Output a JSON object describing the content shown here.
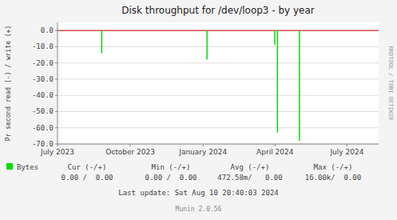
{
  "chart_data": {
    "type": "bar",
    "title": "Disk throughput for /dev/loop3 - by year",
    "ylabel": "Pr second read (-) / write (+)",
    "x": [
      1693000000,
      1704500000,
      1711900000,
      1712200000,
      1714600000
    ],
    "series": [
      {
        "name": "Bytes",
        "color": "#00dd00",
        "values": [
          -14.0,
          -18.0,
          -9.0,
          -63.0,
          -68.0
        ]
      }
    ],
    "xlim": [
      1688169600,
      1723248000
    ],
    "xticks": [
      {
        "value": 1688169600,
        "label": "July 2023"
      },
      {
        "value": 1696118400,
        "label": "October 2023"
      },
      {
        "value": 1704067200,
        "label": "January 2024"
      },
      {
        "value": 1711929600,
        "label": "April 2024"
      },
      {
        "value": 1719792000,
        "label": "July 2024"
      }
    ],
    "ylim": [
      -70.0,
      5.0
    ],
    "yticks": [
      {
        "value": 0.0,
        "label": "0.0"
      },
      {
        "value": -10.0,
        "label": "-10.0"
      },
      {
        "value": -20.0,
        "label": "-20.0"
      },
      {
        "value": -30.0,
        "label": "-30.0"
      },
      {
        "value": -40.0,
        "label": "-40.0"
      },
      {
        "value": -50.0,
        "label": "-50.0"
      },
      {
        "value": -60.0,
        "label": "-60.0"
      },
      {
        "value": -70.0,
        "label": "-70.0"
      }
    ],
    "grid": true,
    "legend": "bottom",
    "annotations": [
      "RRDTOOL / TOBI OETIKER",
      "Cur (-/+)",
      "Min (-/+)",
      "Avg (-/+)",
      "Max (-/+)",
      "0.00 /  0.00",
      "0.00 /  0.00",
      "472.58m/   0.00",
      "16.00k/  0.00",
      "Last update: Sat Aug 10 20:40:03 2024",
      "Munin 2.0.56"
    ]
  }
}
